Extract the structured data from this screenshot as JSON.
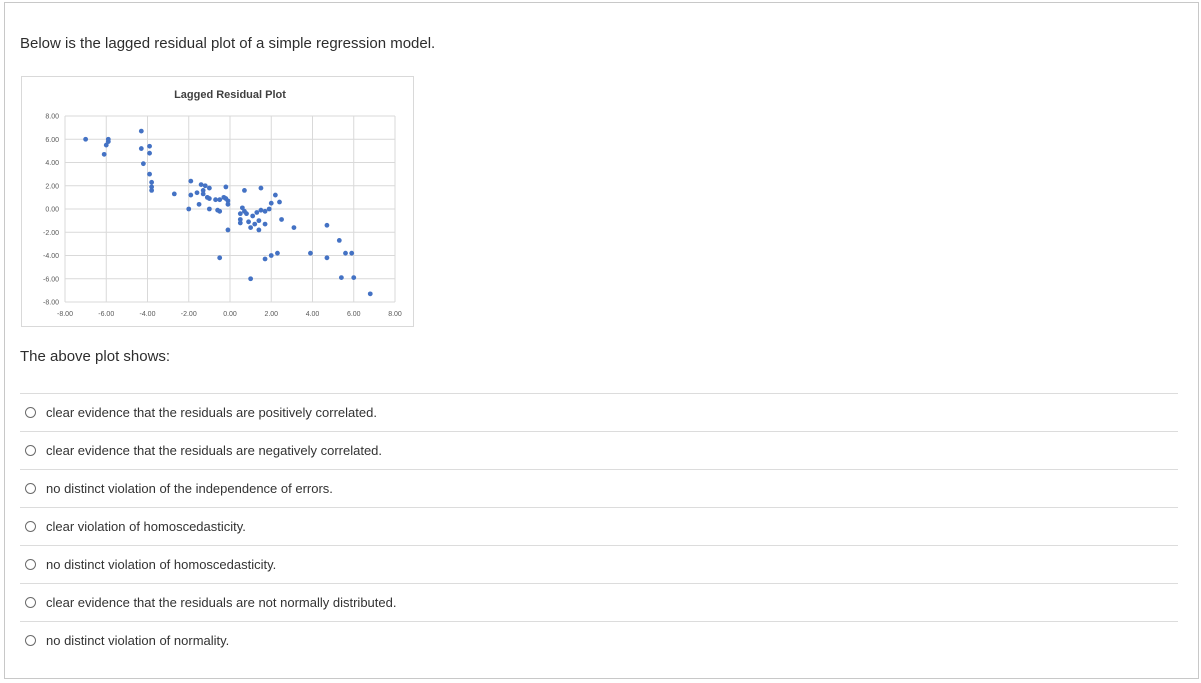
{
  "prompt": "Below is the lagged residual plot of a simple regression model.",
  "question": "The above plot shows:",
  "options": [
    {
      "label": "clear evidence that the residuals are positively correlated."
    },
    {
      "label": "clear evidence that the residuals are negatively correlated."
    },
    {
      "label": "no distinct violation of the independence of errors."
    },
    {
      "label": "clear violation of homoscedasticity."
    },
    {
      "label": "no distinct violation of homoscedasticity."
    },
    {
      "label": "clear evidence that the residuals are not normally distributed."
    },
    {
      "label": "no distinct violation of normality."
    }
  ],
  "colors": {
    "point": "#4472c4",
    "grid": "#d9d9d9"
  },
  "chart_data": {
    "type": "scatter",
    "title": "Lagged Residual Plot",
    "xlim": [
      -8,
      8
    ],
    "ylim": [
      -8,
      8
    ],
    "x_ticks": [
      "-8.00",
      "-6.00",
      "-4.00",
      "-2.00",
      "0.00",
      "2.00",
      "4.00",
      "6.00",
      "8.00"
    ],
    "y_ticks": [
      "8.00",
      "6.00",
      "4.00",
      "2.00",
      "0.00",
      "-2.00",
      "-4.00",
      "-6.00",
      "-8.00"
    ],
    "grid": true,
    "points": [
      [
        -7.0,
        6.0
      ],
      [
        -5.9,
        6.0
      ],
      [
        -5.9,
        5.8
      ],
      [
        -6.0,
        5.5
      ],
      [
        -6.1,
        4.7
      ],
      [
        -4.3,
        6.7
      ],
      [
        -4.3,
        5.2
      ],
      [
        -3.9,
        5.4
      ],
      [
        -3.9,
        4.8
      ],
      [
        -4.2,
        3.9
      ],
      [
        -3.9,
        3.0
      ],
      [
        -3.8,
        2.3
      ],
      [
        -3.8,
        1.9
      ],
      [
        -3.8,
        1.6
      ],
      [
        -2.7,
        1.3
      ],
      [
        -1.9,
        2.4
      ],
      [
        -1.9,
        1.2
      ],
      [
        -1.6,
        1.4
      ],
      [
        -1.4,
        2.1
      ],
      [
        -1.2,
        2.0
      ],
      [
        -1.3,
        1.6
      ],
      [
        -1.0,
        1.8
      ],
      [
        -1.3,
        1.3
      ],
      [
        -1.5,
        0.4
      ],
      [
        -1.1,
        1.0
      ],
      [
        -1.0,
        0.9
      ],
      [
        -0.7,
        0.8
      ],
      [
        -0.5,
        0.8
      ],
      [
        -0.3,
        1.0
      ],
      [
        -0.2,
        0.9
      ],
      [
        -0.1,
        0.7
      ],
      [
        -0.2,
        1.9
      ],
      [
        -0.1,
        0.4
      ],
      [
        -1.0,
        0.0
      ],
      [
        -0.6,
        -0.1
      ],
      [
        -0.5,
        -0.2
      ],
      [
        -2.0,
        0.0
      ],
      [
        0.6,
        0.1
      ],
      [
        0.5,
        -0.4
      ],
      [
        0.7,
        -0.2
      ],
      [
        0.8,
        -0.4
      ],
      [
        1.1,
        -0.6
      ],
      [
        1.3,
        -0.3
      ],
      [
        1.5,
        -0.1
      ],
      [
        1.7,
        -0.2
      ],
      [
        1.9,
        0.0
      ],
      [
        1.4,
        -1.0
      ],
      [
        1.2,
        -1.3
      ],
      [
        0.9,
        -1.1
      ],
      [
        0.5,
        -0.9
      ],
      [
        0.5,
        -1.2
      ],
      [
        1.0,
        -1.6
      ],
      [
        1.4,
        -1.8
      ],
      [
        1.7,
        -1.3
      ],
      [
        -0.1,
        -1.8
      ],
      [
        1.5,
        1.8
      ],
      [
        0.7,
        1.6
      ],
      [
        2.2,
        1.2
      ],
      [
        2.0,
        0.5
      ],
      [
        2.4,
        0.6
      ],
      [
        2.5,
        -0.9
      ],
      [
        3.1,
        -1.6
      ],
      [
        4.7,
        -1.4
      ],
      [
        5.3,
        -2.7
      ],
      [
        5.6,
        -3.8
      ],
      [
        5.9,
        -3.8
      ],
      [
        4.7,
        -4.2
      ],
      [
        3.9,
        -3.8
      ],
      [
        2.3,
        -3.8
      ],
      [
        2.0,
        -4.0
      ],
      [
        1.7,
        -4.3
      ],
      [
        -0.5,
        -4.2
      ],
      [
        1.0,
        -6.0
      ],
      [
        5.4,
        -5.9
      ],
      [
        6.0,
        -5.9
      ],
      [
        6.8,
        -7.3
      ]
    ]
  }
}
